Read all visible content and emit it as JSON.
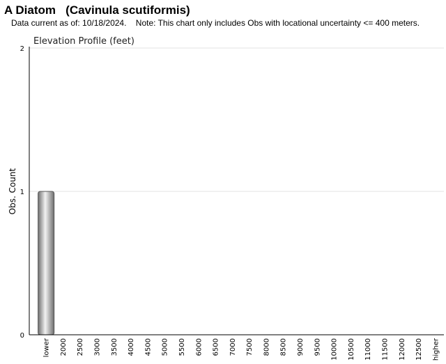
{
  "header": {
    "title": "A Diatom   (Cavinula scutiformis)",
    "note": "Data current as of: 10/18/2024.    Note: This chart only includes Obs with locational uncertainty <= 400 meters."
  },
  "chart_data": {
    "type": "bar",
    "title": "Elevation Profile (feet)",
    "xlabel": "",
    "ylabel": "Obs. Count",
    "ylim": [
      0,
      2
    ],
    "yticks": [
      0,
      1,
      2
    ],
    "grid": true,
    "categories": [
      "lower",
      "2000",
      "2500",
      "3000",
      "3500",
      "4000",
      "4500",
      "5000",
      "5500",
      "6000",
      "6500",
      "7000",
      "7500",
      "8000",
      "8500",
      "9000",
      "9500",
      "10000",
      "10500",
      "11000",
      "11500",
      "12000",
      "12500",
      "higher"
    ],
    "values": [
      1,
      0,
      0,
      0,
      0,
      0,
      0,
      0,
      0,
      0,
      0,
      0,
      0,
      0,
      0,
      0,
      0,
      0,
      0,
      0,
      0,
      0,
      0,
      0
    ],
    "colors": {
      "bar_dark": "#6e6e6e",
      "bar_light": "#f2f2f2",
      "grid": "#e3e3e3",
      "axis": "#000000"
    }
  }
}
